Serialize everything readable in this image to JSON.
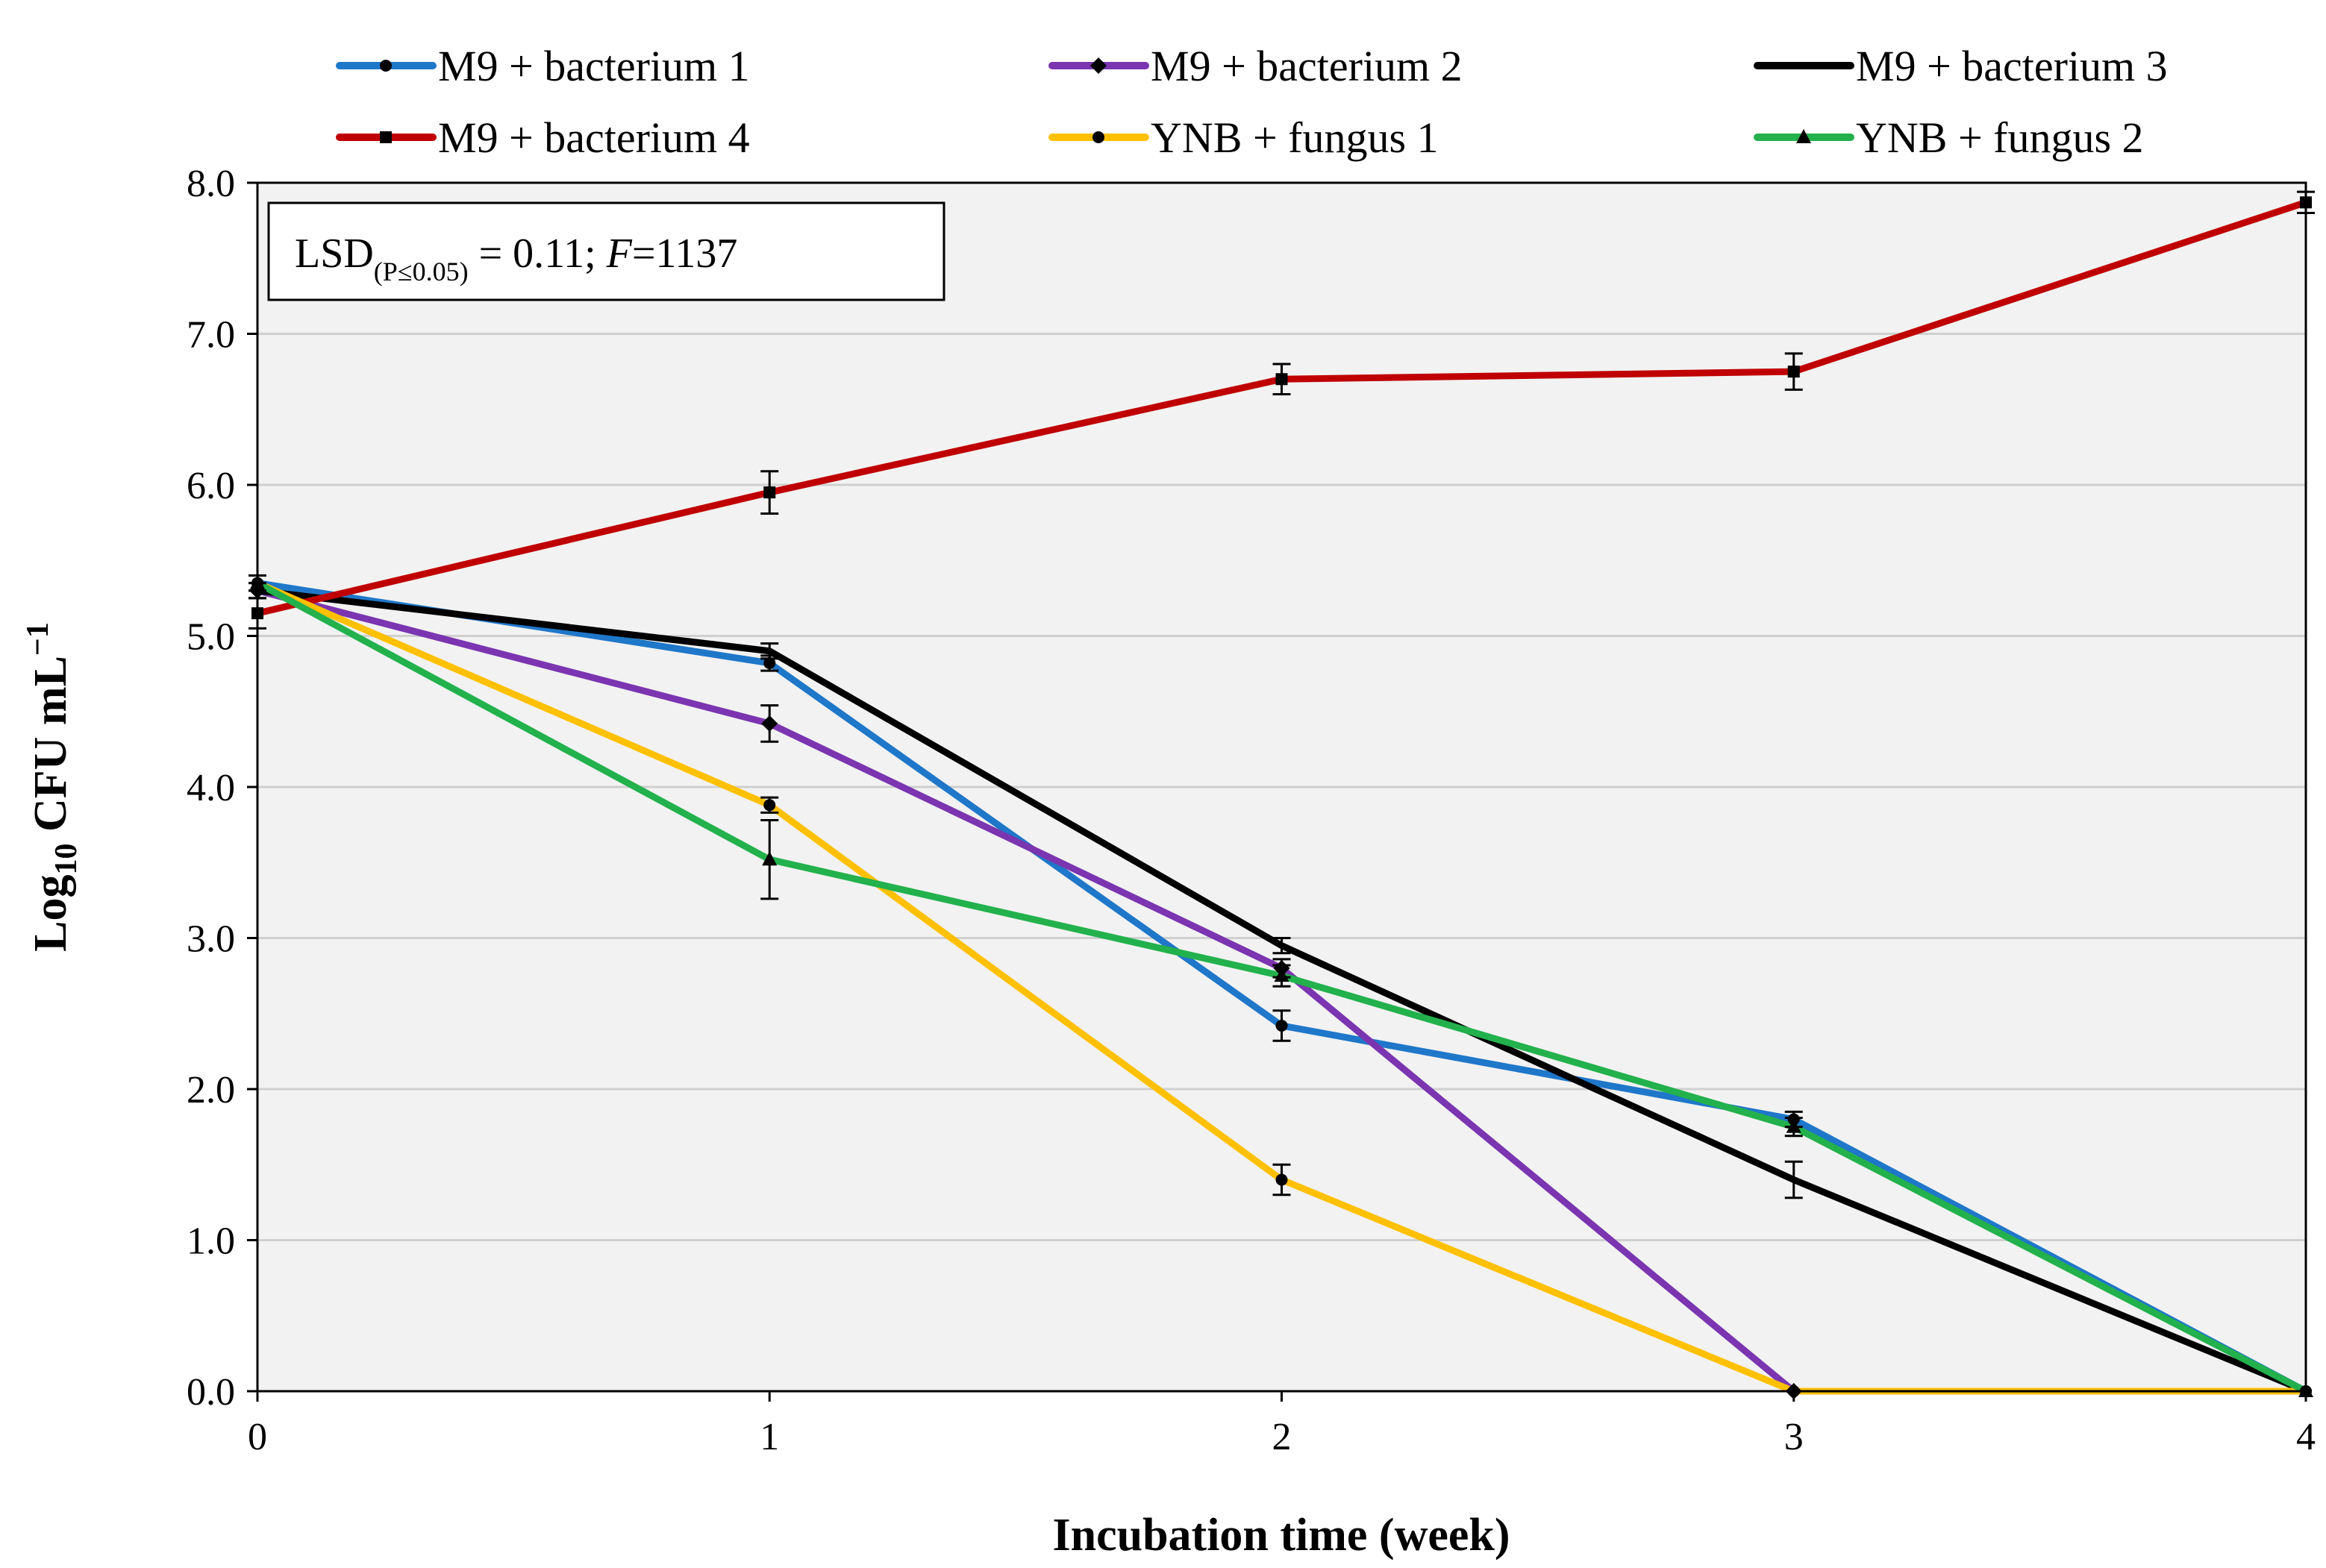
{
  "chart_data": {
    "type": "line",
    "x": [
      0,
      1,
      2,
      3,
      4
    ],
    "xlabel": "Incubation time (week)",
    "ylabel": "Log",
    "ylabel_sub": "10",
    "ylabel_rest": " CFU mL",
    "ylabel_sup": "−1",
    "xlim": [
      0,
      4
    ],
    "ylim": [
      0,
      8
    ],
    "x_ticks": [
      "0",
      "1",
      "2",
      "3",
      "4"
    ],
    "y_ticks": [
      "0.0",
      "1.0",
      "2.0",
      "3.0",
      "4.0",
      "5.0",
      "6.0",
      "7.0",
      "8.0"
    ],
    "grid": "horizontal",
    "legend_position": "top",
    "annotation": {
      "prefix": "LSD",
      "sub_text": "(P≤0.05)",
      "suffix": " = 0.11; ",
      "f_label": "F",
      "f_value": "=1137"
    },
    "series": [
      {
        "name": "M9 + bacterium 1",
        "color": "#1f77c9",
        "marker": "circle",
        "values": [
          5.35,
          4.82,
          2.42,
          1.8,
          0.0
        ],
        "errors": [
          0.05,
          0.05,
          0.1,
          0.05,
          0.0
        ]
      },
      {
        "name": "M9 + bacterium 2",
        "color": "#7b35b0",
        "marker": "diamond",
        "values": [
          5.3,
          4.42,
          2.8,
          0.0,
          null
        ],
        "errors": [
          0.05,
          0.12,
          0.06,
          0.0,
          0.0
        ]
      },
      {
        "name": "M9 + bacterium 3",
        "color": "#000000",
        "marker": "none",
        "values": [
          5.3,
          4.9,
          2.95,
          1.4,
          0.0
        ],
        "errors": [
          0.05,
          0.05,
          0.05,
          0.12,
          0.0
        ]
      },
      {
        "name": "M9 + bacterium 4",
        "color": "#c00000",
        "marker": "square",
        "values": [
          5.15,
          5.95,
          6.7,
          6.75,
          7.87
        ],
        "errors": [
          0.1,
          0.14,
          0.1,
          0.12,
          0.07
        ]
      },
      {
        "name": "YNB + fungus 1",
        "color": "#ffc000",
        "marker": "circle",
        "values": [
          5.35,
          3.88,
          1.4,
          0.0,
          0.0
        ],
        "errors": [
          0.05,
          0.05,
          0.1,
          0.0,
          0.0
        ]
      },
      {
        "name": "YNB + fungus 2",
        "color": "#22b14c",
        "marker": "triangle",
        "values": [
          5.35,
          3.52,
          2.75,
          1.75,
          0.0
        ],
        "errors": [
          0.05,
          0.26,
          0.07,
          0.06,
          0.0
        ]
      }
    ]
  }
}
